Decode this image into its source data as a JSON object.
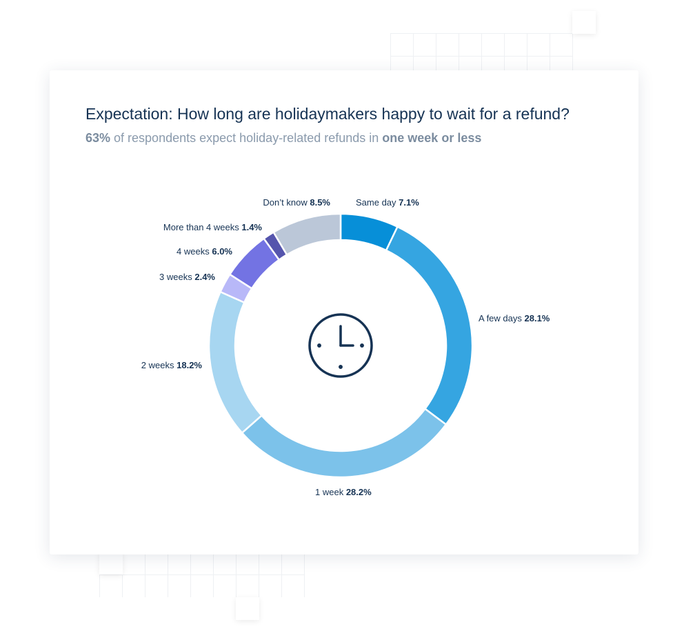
{
  "header": {
    "title": "Expectation: How long are holidaymakers happy to wait for a refund?",
    "subtitle_highlight": "63%",
    "subtitle_text": " of respondents expect holiday-related refunds in ",
    "subtitle_emphasis": "one week or less"
  },
  "chart_data": {
    "type": "pie",
    "donut": true,
    "center_icon": "clock-icon",
    "slices": [
      {
        "label": "Same day",
        "value": 7.1,
        "display": "7.1%",
        "color": "#078fd8"
      },
      {
        "label": "A few days",
        "value": 28.1,
        "display": "28.1%",
        "color": "#35a5e1"
      },
      {
        "label": "1 week",
        "value": 28.2,
        "display": "28.2%",
        "color": "#7cc2ea"
      },
      {
        "label": "2 weeks",
        "value": 18.2,
        "display": "18.2%",
        "color": "#a7d6f1"
      },
      {
        "label": "3 weeks",
        "value": 2.4,
        "display": "2.4%",
        "color": "#b8b8f8"
      },
      {
        "label": "4 weeks",
        "value": 6.0,
        "display": "6.0%",
        "color": "#7373e3"
      },
      {
        "label": "More than 4 weeks",
        "value": 1.4,
        "display": "1.4%",
        "color": "#5555ad"
      },
      {
        "label": "Don’t know",
        "value": 8.5,
        "display": "8.5%",
        "color": "#bbc7d8"
      }
    ]
  }
}
